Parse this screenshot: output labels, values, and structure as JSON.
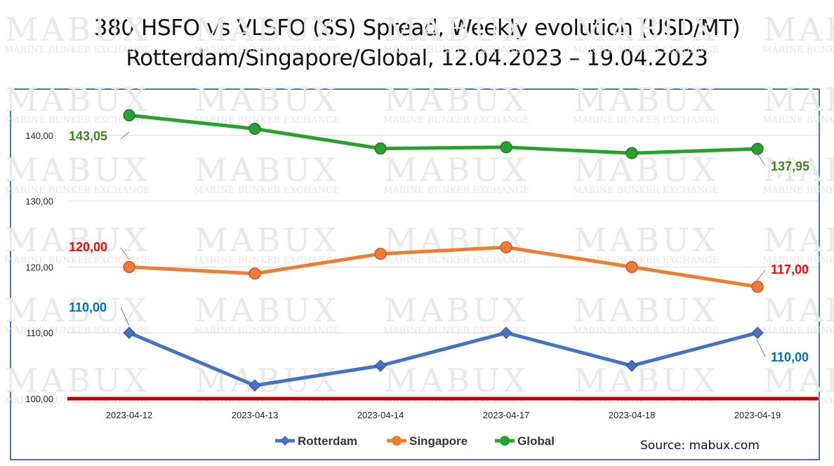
{
  "title_line1": "380 HSFO vs VLSFO (SS) Spread, Weekly evolution (USD/MT)",
  "title_line2": "Rotterdam/Singapore/Global, 12.04.2023 – 19.04.2023",
  "source": "Source: mabux.com",
  "watermark": {
    "big": "MABUX",
    "small": "MARINE BUNKER EXCHANGE"
  },
  "chart_data": {
    "type": "line",
    "categories": [
      "2023-04-12",
      "2023-04-13",
      "2023-04-14",
      "2023-04-17",
      "2023-04-18",
      "2023-04-19"
    ],
    "ylim": [
      100,
      145
    ],
    "yticks": [
      "100,00",
      "110,00",
      "120,00",
      "130,00",
      "140,00"
    ],
    "ytick_values": [
      100,
      110,
      120,
      130,
      140
    ],
    "grid": true,
    "legend_position": "bottom",
    "baseline": {
      "value": 100,
      "color": "#c00000"
    },
    "series": [
      {
        "name": "Rotterdam",
        "color": "#4472c4",
        "marker": "diamond",
        "values": [
          110,
          102,
          105,
          110,
          105,
          110
        ],
        "start_label": "110,00",
        "end_label": "110,00",
        "label_color": "#0070c0"
      },
      {
        "name": "Singapore",
        "color": "#ed7d31",
        "marker": "circle",
        "values": [
          120,
          119,
          122,
          123,
          120,
          117
        ],
        "start_label": "120,00",
        "end_label": "117,00",
        "label_color": "#ff0000"
      },
      {
        "name": "Global",
        "color": "#27a22f",
        "marker": "circle",
        "values": [
          143.05,
          141,
          138,
          138.2,
          137.3,
          137.95
        ],
        "start_label": "143,05",
        "end_label": "137,95",
        "label_color": "#4a7c2a"
      }
    ]
  }
}
